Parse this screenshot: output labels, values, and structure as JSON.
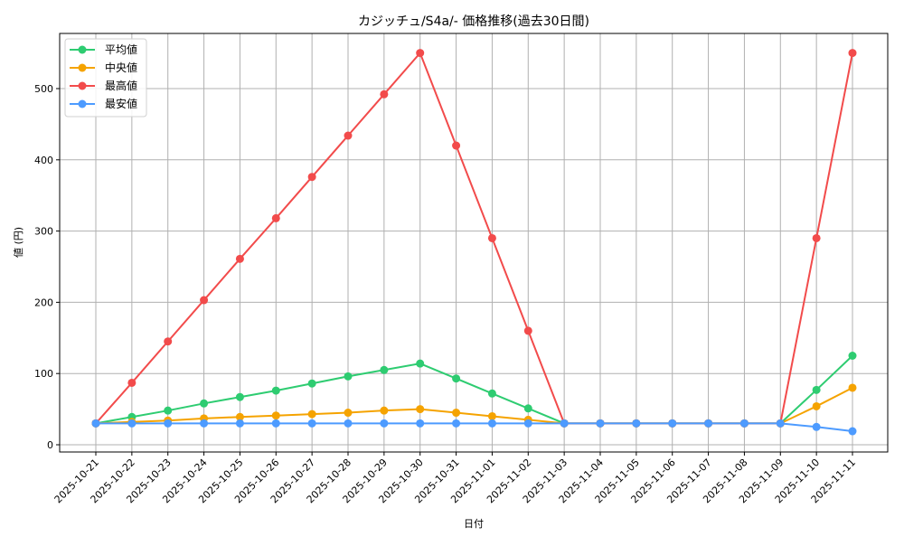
{
  "chart_data": {
    "type": "line",
    "title": "カジッチュ/S4a/- 価格推移(過去30日間)",
    "xlabel": "日付",
    "ylabel": "値 (円)",
    "ylim": [
      -2,
      580
    ],
    "yticks": [
      0,
      100,
      200,
      300,
      400,
      500
    ],
    "grid": true,
    "legend_position": "upper left",
    "categories": [
      "2025-10-21",
      "2025-10-22",
      "2025-10-23",
      "2025-10-24",
      "2025-10-25",
      "2025-10-26",
      "2025-10-27",
      "2025-10-28",
      "2025-10-29",
      "2025-10-30",
      "2025-10-31",
      "2025-11-01",
      "2025-11-02",
      "2025-11-03",
      "2025-11-04",
      "2025-11-05",
      "2025-11-06",
      "2025-11-07",
      "2025-11-08",
      "2025-11-09",
      "2025-11-10",
      "2025-11-11"
    ],
    "series": [
      {
        "name": "平均値",
        "color": "#2ecc71",
        "values": [
          30,
          39,
          48,
          58,
          67,
          76,
          86,
          96,
          105,
          114,
          93,
          72,
          51,
          30,
          30,
          30,
          30,
          30,
          30,
          30,
          77,
          125
        ]
      },
      {
        "name": "中央値",
        "color": "#f5a300",
        "values": [
          30,
          32,
          34,
          37,
          39,
          41,
          43,
          45,
          48,
          50,
          45,
          40,
          35,
          30,
          30,
          30,
          30,
          30,
          30,
          30,
          54,
          80
        ]
      },
      {
        "name": "最高値",
        "color": "#f24b4b",
        "values": [
          30,
          87,
          145,
          203,
          261,
          318,
          376,
          434,
          492,
          550,
          420,
          290,
          160,
          30,
          30,
          30,
          30,
          30,
          30,
          30,
          290,
          550
        ]
      },
      {
        "name": "最安値",
        "color": "#4d9bff",
        "values": [
          30,
          30,
          30,
          30,
          30,
          30,
          30,
          30,
          30,
          30,
          30,
          30,
          30,
          30,
          30,
          30,
          30,
          30,
          30,
          30,
          25,
          19
        ]
      }
    ]
  }
}
